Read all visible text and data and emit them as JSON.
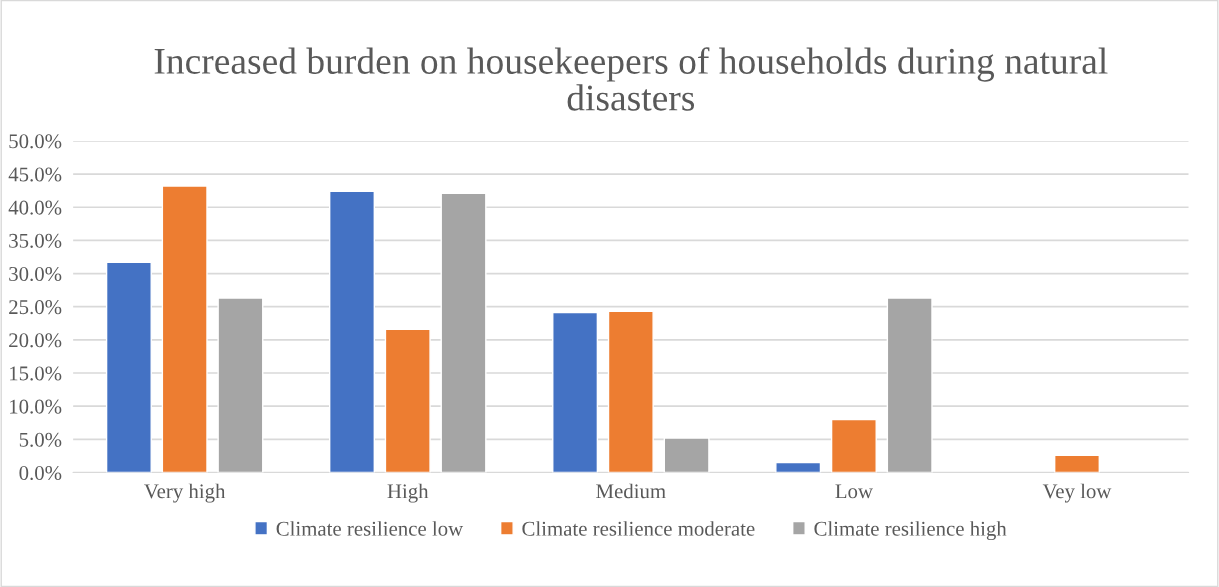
{
  "chart_data": {
    "type": "bar",
    "title": "Increased burden on housekeepers of households during natural disasters",
    "categories": [
      "Very high",
      "High",
      "Medium",
      "Low",
      "Vey low"
    ],
    "series": [
      {
        "name": "Climate resilience low",
        "color": "#4472c4",
        "values": [
          31.7,
          42.4,
          24.1,
          1.5,
          null
        ]
      },
      {
        "name": "Climate resilience moderate",
        "color": "#ed7d31",
        "values": [
          43.2,
          21.6,
          24.3,
          8.0,
          2.6
        ]
      },
      {
        "name": "Climate resilience high",
        "color": "#a5a5a5",
        "values": [
          26.3,
          42.1,
          5.2,
          26.3,
          null
        ]
      }
    ],
    "ylim": [
      0,
      50
    ],
    "yticks": [
      {
        "value": 0,
        "label": "0.0%"
      },
      {
        "value": 5,
        "label": "5.0%"
      },
      {
        "value": 10,
        "label": "10.0%"
      },
      {
        "value": 15,
        "label": "15.0%"
      },
      {
        "value": 20,
        "label": "20.0%"
      },
      {
        "value": 25,
        "label": "25.0%"
      },
      {
        "value": 30,
        "label": "30.0%"
      },
      {
        "value": 35,
        "label": "35.0%"
      },
      {
        "value": 40,
        "label": "40.0%"
      },
      {
        "value": 45,
        "label": "45.0%"
      },
      {
        "value": 50,
        "label": "50.0%"
      }
    ],
    "grid": "y",
    "legend": "bottom"
  }
}
